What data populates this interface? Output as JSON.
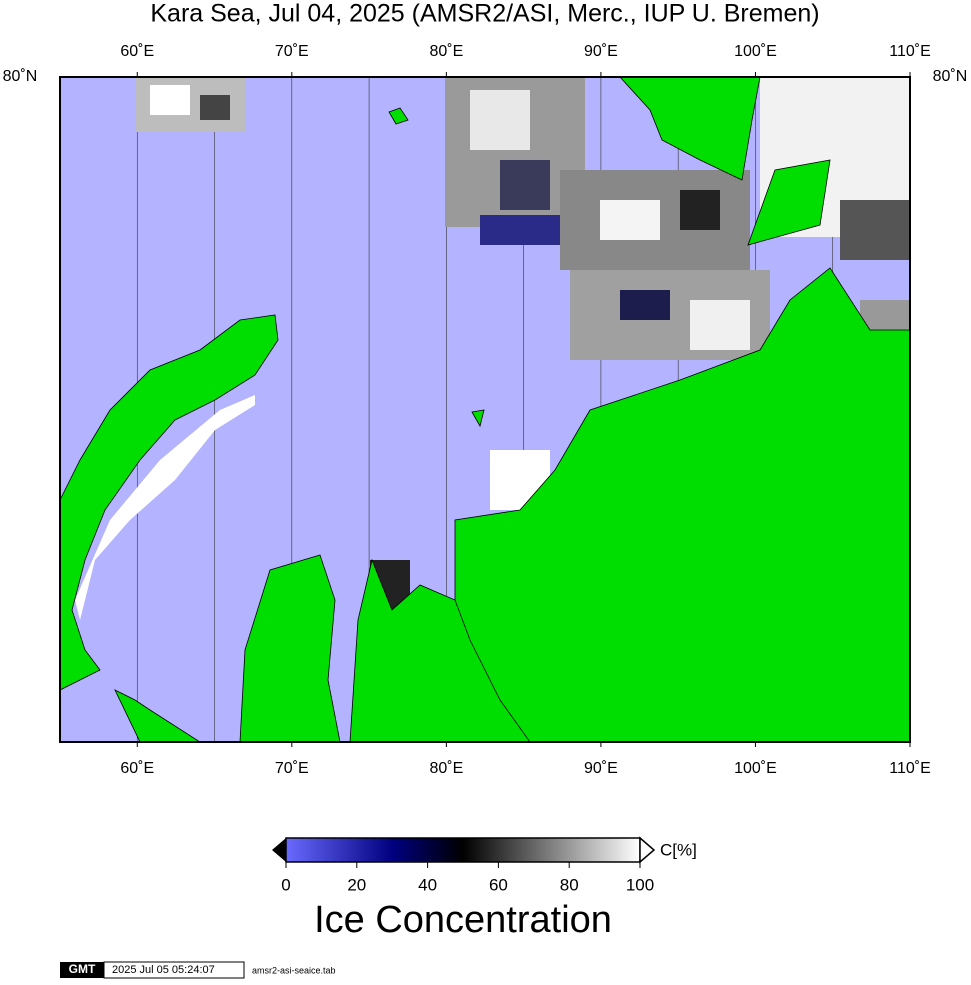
{
  "title": "Kara Sea, Jul 04, 2025 (AMSR2/ASI, Merc., IUP U. Bremen)",
  "map": {
    "xlim": [
      55,
      110
    ],
    "xticks": [
      {
        "value": 60,
        "label": "60˚E"
      },
      {
        "value": 70,
        "label": "70˚E"
      },
      {
        "value": 80,
        "label": "80˚E"
      },
      {
        "value": 90,
        "label": "90˚E"
      },
      {
        "value": 100,
        "label": "100˚E"
      },
      {
        "value": 110,
        "label": "110˚E"
      }
    ],
    "gridlines": [
      60,
      65,
      70,
      75,
      80,
      85,
      90,
      95,
      100,
      105
    ],
    "lat_label": "80˚N"
  },
  "colorbar": {
    "lim": [
      0,
      100
    ],
    "ticks": [
      0,
      20,
      40,
      60,
      80,
      100
    ],
    "unit": "C[%]",
    "label": "Ice Concentration"
  },
  "footer": {
    "logo": "GMT",
    "timestamp": "2025 Jul 05 05:24:07",
    "file": "amsr2-asi-seaice.tab"
  }
}
